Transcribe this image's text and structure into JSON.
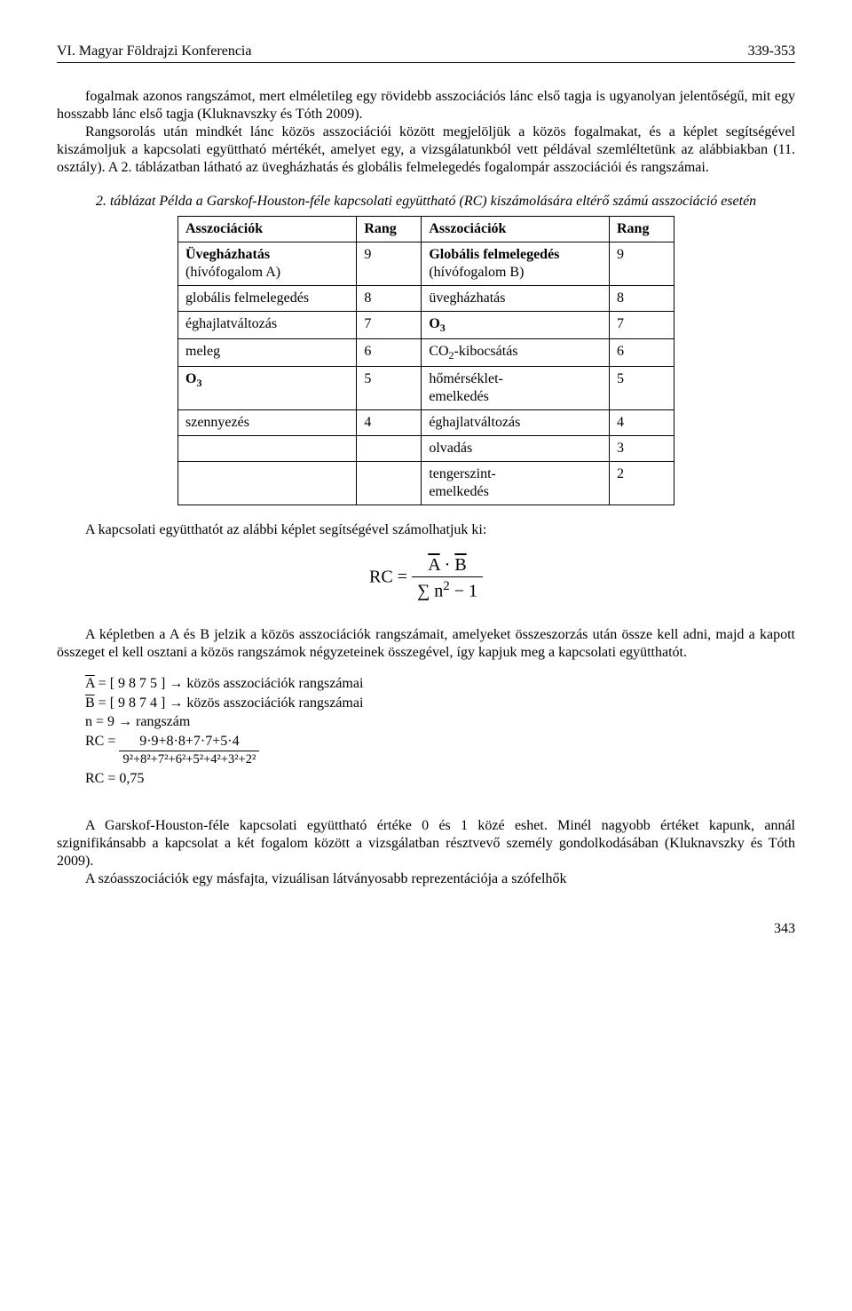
{
  "header": {
    "left": "VI. Magyar Földrajzi Konferencia",
    "right": "339-353"
  },
  "p1": "fogalmak azonos rangszámot, mert elméletileg egy rövidebb asszociációs lánc első tagja is ugyanolyan jelentőségű, mit egy hosszabb lánc első tagja (Kluknavszky és Tóth 2009).",
  "p2": "Rangsorolás után mindkét lánc közös asszociációi között megjelöljük a közös fogalmakat, és a képlet segítségével kiszámoljuk a kapcsolati együttható mértékét, amelyet egy, a vizsgálatunkból vett példával szemléltetünk az alábbiakban (11. osztály). A 2. táblázatban látható az üvegházhatás és globális felmelegedés fogalompár asszociációi és rangszámai.",
  "table_caption": "2. táblázat Példa a Garskof-Houston-féle kapcsolati együttható (RC) kiszámolására eltérő számú asszociáció esetén",
  "table": {
    "head": {
      "c1": "Asszociációk",
      "c2": "Rang",
      "c3": "Asszociációk",
      "c4": "Rang"
    },
    "rows": [
      {
        "c1_html": "<b>Üvegházhatás</b><br>(hívófogalom A)",
        "c2": "9",
        "c3_html": "<b>Globális felmelegedés</b><br>(hívófogalom B)",
        "c4": "9"
      },
      {
        "c1": "globális felmelegedés",
        "c2": "8",
        "c3": "üvegházhatás",
        "c4": "8"
      },
      {
        "c1": "éghajlatváltozás",
        "c2": "7",
        "c3_html": "<b>O<sub>3</sub></b>",
        "c4": "7"
      },
      {
        "c1": "meleg",
        "c2": "6",
        "c3_html": "CO<sub>2</sub>-kibocsátás",
        "c4": "6"
      },
      {
        "c1_html": "<b>O<sub>3</sub></b>",
        "c2": "5",
        "c3_html": "hőmérséklet-<br>emelkedés",
        "c4": "5"
      },
      {
        "c1": "szennyezés",
        "c2": "4",
        "c3": "éghajlatváltozás",
        "c4": "4"
      },
      {
        "c1": "",
        "c2": "",
        "c3": "olvadás",
        "c4": "3"
      },
      {
        "c1": "",
        "c2": "",
        "c3_html": "tengerszint-<br>emelkedés",
        "c4": "2"
      }
    ]
  },
  "p3": "A kapcsolati együtthatót az alábbi képlet segítségével számolhatjuk ki:",
  "formula": {
    "lhs": "RC =",
    "num_html": "<span class=\"overline\">A</span> · <span class=\"overline\">B</span>",
    "den_html": "∑ n<sup>2</sup> − 1"
  },
  "p4": "A képletben a A és B jelzik a közös asszociációk rangszámait, amelyeket összeszorzás után össze kell adni, majd a kapott összeget el kell osztani a közös rangszámok négyzeteinek összegével, így kapjuk meg a kapcsolati együtthatót.",
  "calc": {
    "l1_html": "<span class=\"overline\">A</span> = [ 9 8 7 5 ] → közös asszociációk rangszámai",
    "l2_html": "<span class=\"overline\">B</span> = [ 9 8 7 4 ] → közös asszociációk rangszámai",
    "l3": "n = 9 → rangszám",
    "rc_label": "RC =",
    "rc_num": "9·9+8·8+7·7+5·4",
    "rc_den": "9²+8²+7²+6²+5²+4²+3²+2²",
    "l5": "RC = 0,75"
  },
  "p5": "A Garskof-Houston-féle kapcsolati együttható értéke 0 és 1 közé eshet. Minél nagyobb értéket kapunk, annál szignifikánsabb a kapcsolat a két fogalom között a vizsgálatban résztvevő személy gondolkodásában (Kluknavszky és Tóth 2009).",
  "p6": "A szóasszociációk egy másfajta, vizuálisan látványosabb reprezentációja a szófelhők",
  "page_number": "343"
}
